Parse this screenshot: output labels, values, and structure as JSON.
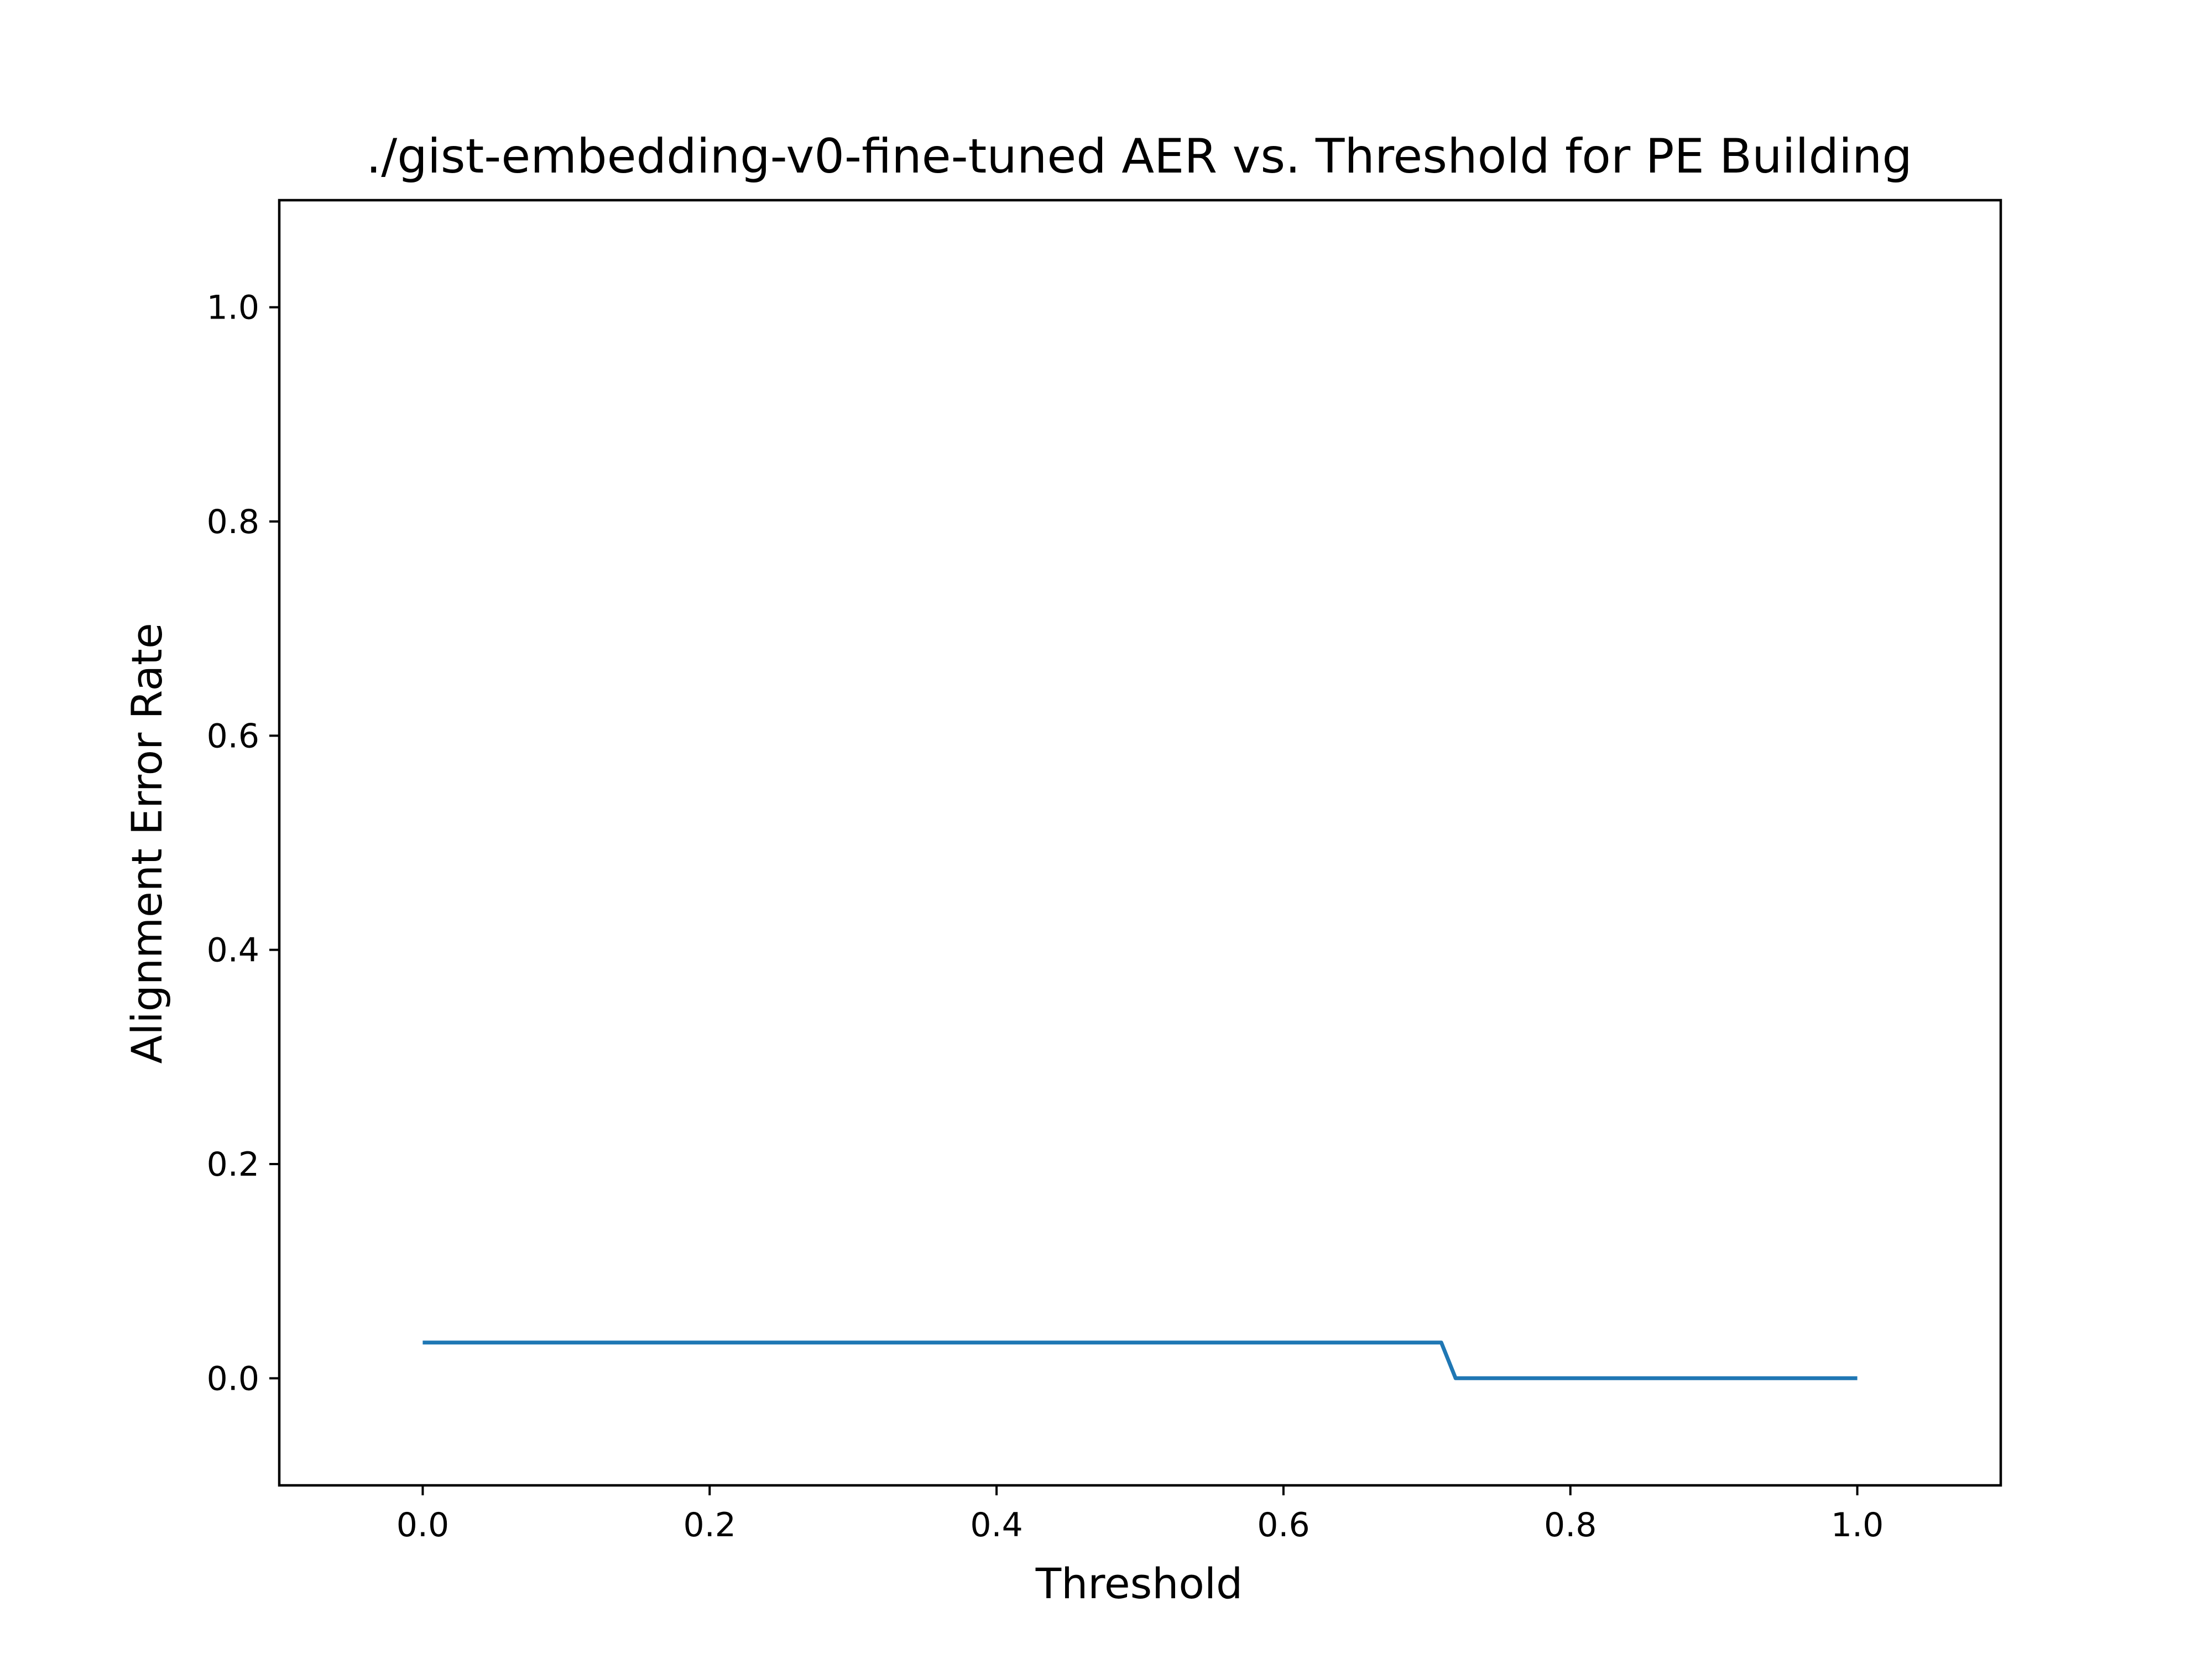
{
  "chart_data": {
    "type": "line",
    "title": "./gist-embedding-v0-fine-tuned AER vs. Threshold for PE Building",
    "xlabel": "Threshold",
    "ylabel": "Alignment Error Rate",
    "xlim": [
      -0.1,
      1.1
    ],
    "ylim": [
      -0.1,
      1.1
    ],
    "xticks": [
      0.0,
      0.2,
      0.4,
      0.6,
      0.8,
      1.0
    ],
    "xtick_labels": [
      "0.0",
      "0.2",
      "0.4",
      "0.6",
      "0.8",
      "1.0"
    ],
    "yticks": [
      0.0,
      0.2,
      0.4,
      0.6,
      0.8,
      1.0
    ],
    "ytick_labels": [
      "0.0",
      "0.2",
      "0.4",
      "0.6",
      "0.8",
      "1.0"
    ],
    "grid": false,
    "series": [
      {
        "color": "#1f77b4",
        "x": [
          0.0,
          0.71,
          0.72,
          1.0
        ],
        "y": [
          0.0333,
          0.0333,
          0.0,
          0.0
        ]
      }
    ]
  }
}
